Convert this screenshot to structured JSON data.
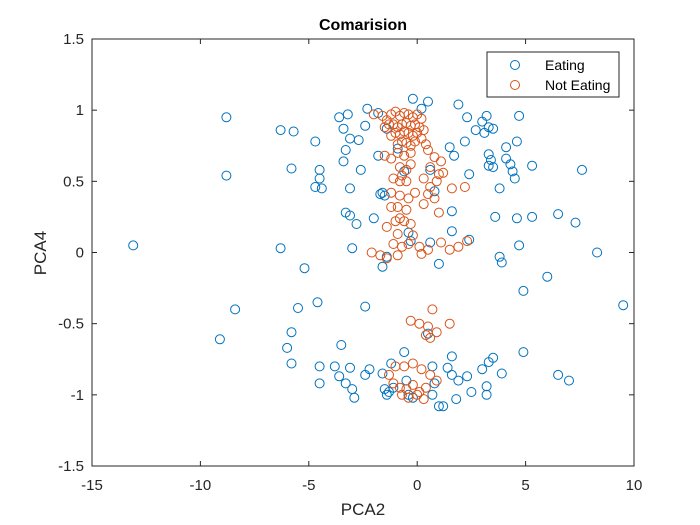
{
  "chart_data": {
    "type": "scatter",
    "title": "Comarision",
    "xlabel": "PCA2",
    "ylabel": "PCA4",
    "xlim": [
      -15,
      10
    ],
    "ylim": [
      -1.5,
      1.5
    ],
    "xticks": [
      -15,
      -10,
      -5,
      0,
      5,
      10
    ],
    "yticks": [
      -1.5,
      -1,
      -0.5,
      0,
      0.5,
      1,
      1.5
    ],
    "xtick_labels": [
      "-15",
      "-10",
      "-5",
      "0",
      "5",
      "10"
    ],
    "ytick_labels": [
      "-1.5",
      "-1",
      "-0.5",
      "0",
      "0.5",
      "1",
      "1.5"
    ],
    "grid": false,
    "legend_position": "top-right",
    "series": [
      {
        "name": "Eating",
        "color": "#0072BD",
        "marker": "circle-open",
        "points": [
          [
            -13.1,
            0.05
          ],
          [
            -8.8,
            0.95
          ],
          [
            -8.8,
            0.54
          ],
          [
            -8.4,
            -0.4
          ],
          [
            -9.1,
            -0.61
          ],
          [
            -6.3,
            0.86
          ],
          [
            -5.7,
            0.85
          ],
          [
            -5.8,
            0.59
          ],
          [
            -6.3,
            0.03
          ],
          [
            -5.2,
            -0.11
          ],
          [
            -5.5,
            -0.39
          ],
          [
            -5.8,
            -0.56
          ],
          [
            -6.0,
            -0.67
          ],
          [
            -5.8,
            -0.78
          ],
          [
            -4.7,
            0.78
          ],
          [
            -4.5,
            0.58
          ],
          [
            -4.5,
            0.52
          ],
          [
            -4.4,
            0.45
          ],
          [
            -4.7,
            0.46
          ],
          [
            -4.6,
            -0.35
          ],
          [
            -4.5,
            -0.8
          ],
          [
            -4.5,
            -0.92
          ],
          [
            -3.6,
            0.95
          ],
          [
            -3.2,
            0.97
          ],
          [
            -3.4,
            0.87
          ],
          [
            -3.1,
            0.8
          ],
          [
            -3.3,
            0.72
          ],
          [
            -3.4,
            0.64
          ],
          [
            -3.1,
            0.45
          ],
          [
            -3.3,
            0.28
          ],
          [
            -3.1,
            0.26
          ],
          [
            -2.8,
            0.2
          ],
          [
            -3.0,
            0.03
          ],
          [
            -3.5,
            -0.65
          ],
          [
            -3.8,
            -0.8
          ],
          [
            -3.6,
            -0.87
          ],
          [
            -3.3,
            -0.92
          ],
          [
            -3.1,
            -0.81
          ],
          [
            -3.0,
            -0.96
          ],
          [
            -2.9,
            -1.02
          ],
          [
            -2.7,
            0.79
          ],
          [
            -2.6,
            0.58
          ],
          [
            -2.4,
            0.89
          ],
          [
            -2.3,
            1.01
          ],
          [
            -2.4,
            -0.38
          ],
          [
            -2.4,
            -0.86
          ],
          [
            -2.2,
            -0.82
          ],
          [
            -2.0,
            0.24
          ],
          [
            -1.8,
            0.98
          ],
          [
            -1.8,
            0.68
          ],
          [
            -1.7,
            0.41
          ],
          [
            -1.6,
            0.42
          ],
          [
            -1.5,
            0.4
          ],
          [
            -1.4,
            0.87
          ],
          [
            -1.6,
            -0.1
          ],
          [
            -1.4,
            -0.03
          ],
          [
            -1.6,
            -0.85
          ],
          [
            -1.5,
            -0.96
          ],
          [
            -1.4,
            -1.0
          ],
          [
            -1.3,
            -0.98
          ],
          [
            -1.2,
            -0.78
          ],
          [
            -1.1,
            -0.95
          ],
          [
            -0.9,
            0.73
          ],
          [
            -0.6,
            0.57
          ],
          [
            -0.4,
            0.14
          ],
          [
            -0.3,
            0.08
          ],
          [
            -0.6,
            -0.7
          ],
          [
            -0.5,
            -0.9
          ],
          [
            -0.4,
            -1.0
          ],
          [
            -0.2,
            -1.02
          ],
          [
            -0.2,
            1.08
          ],
          [
            0.2,
            1.01
          ],
          [
            0.5,
            1.06
          ],
          [
            0.6,
            0.58
          ],
          [
            0.8,
            0.43
          ],
          [
            0.6,
            0.07
          ],
          [
            1.0,
            -0.08
          ],
          [
            0.5,
            -0.57
          ],
          [
            0.7,
            -0.8
          ],
          [
            0.8,
            -0.92
          ],
          [
            1.0,
            -1.08
          ],
          [
            1.2,
            -1.08
          ],
          [
            0.7,
            -1.0
          ],
          [
            1.5,
            0.74
          ],
          [
            1.7,
            0.68
          ],
          [
            1.6,
            0.29
          ],
          [
            1.6,
            0.15
          ],
          [
            1.6,
            -0.73
          ],
          [
            1.4,
            -0.81
          ],
          [
            1.6,
            -0.86
          ],
          [
            1.9,
            -0.9
          ],
          [
            1.8,
            -1.03
          ],
          [
            1.9,
            1.04
          ],
          [
            2.3,
            0.95
          ],
          [
            2.2,
            0.78
          ],
          [
            2.4,
            0.55
          ],
          [
            2.4,
            0.09
          ],
          [
            2.3,
            -0.87
          ],
          [
            2.5,
            -0.98
          ],
          [
            2.7,
            0.86
          ],
          [
            3.0,
            0.92
          ],
          [
            3.2,
            0.96
          ],
          [
            3.3,
            0.88
          ],
          [
            3.1,
            0.84
          ],
          [
            3.3,
            0.69
          ],
          [
            3.4,
            0.65
          ],
          [
            3.3,
            0.61
          ],
          [
            3.0,
            -0.82
          ],
          [
            3.3,
            -0.77
          ],
          [
            3.2,
            -0.94
          ],
          [
            3.2,
            -1.0
          ],
          [
            3.5,
            0.87
          ],
          [
            3.5,
            0.6
          ],
          [
            3.6,
            0.25
          ],
          [
            3.5,
            -0.74
          ],
          [
            3.8,
            0.45
          ],
          [
            3.8,
            -0.03
          ],
          [
            3.9,
            -0.07
          ],
          [
            3.9,
            -0.85
          ],
          [
            4.1,
            0.74
          ],
          [
            4.1,
            0.66
          ],
          [
            4.3,
            0.62
          ],
          [
            4.4,
            0.57
          ],
          [
            4.5,
            0.52
          ],
          [
            4.6,
            0.78
          ],
          [
            4.7,
            0.96
          ],
          [
            4.6,
            0.24
          ],
          [
            4.7,
            0.05
          ],
          [
            4.9,
            -0.27
          ],
          [
            4.9,
            -0.7
          ],
          [
            5.3,
            0.61
          ],
          [
            5.3,
            0.25
          ],
          [
            6.0,
            -0.17
          ],
          [
            6.5,
            0.27
          ],
          [
            6.5,
            -0.86
          ],
          [
            7.0,
            -0.9
          ],
          [
            7.3,
            0.21
          ],
          [
            7.6,
            0.58
          ],
          [
            8.3,
            0.0
          ],
          [
            9.5,
            -0.37
          ]
        ]
      },
      {
        "name": "Not Eating",
        "color": "#D95319",
        "marker": "circle-open",
        "points": [
          [
            -2.0,
            0.97
          ],
          [
            -1.6,
            0.96
          ],
          [
            -1.4,
            0.93
          ],
          [
            -1.2,
            0.97
          ],
          [
            -1.0,
            0.99
          ],
          [
            -0.8,
            0.96
          ],
          [
            -0.6,
            0.98
          ],
          [
            -0.4,
            0.97
          ],
          [
            -0.2,
            0.95
          ],
          [
            0.0,
            0.97
          ],
          [
            0.2,
            0.94
          ],
          [
            -1.5,
            0.88
          ],
          [
            -1.3,
            0.9
          ],
          [
            -1.1,
            0.9
          ],
          [
            -0.9,
            0.88
          ],
          [
            -0.7,
            0.9
          ],
          [
            -0.5,
            0.91
          ],
          [
            -0.3,
            0.89
          ],
          [
            -0.1,
            0.9
          ],
          [
            0.1,
            0.88
          ],
          [
            0.3,
            0.86
          ],
          [
            -1.2,
            0.82
          ],
          [
            -1.0,
            0.84
          ],
          [
            -0.8,
            0.83
          ],
          [
            -0.6,
            0.85
          ],
          [
            -0.4,
            0.84
          ],
          [
            -0.2,
            0.82
          ],
          [
            0.0,
            0.84
          ],
          [
            0.2,
            0.8
          ],
          [
            -0.9,
            0.76
          ],
          [
            -0.7,
            0.78
          ],
          [
            -0.5,
            0.77
          ],
          [
            -0.3,
            0.75
          ],
          [
            -0.1,
            0.78
          ],
          [
            0.4,
            0.76
          ],
          [
            -1.5,
            0.68
          ],
          [
            -1.2,
            0.66
          ],
          [
            -0.9,
            0.7
          ],
          [
            -0.6,
            0.68
          ],
          [
            -0.3,
            0.7
          ],
          [
            0.5,
            0.72
          ],
          [
            0.8,
            0.67
          ],
          [
            1.1,
            0.64
          ],
          [
            -0.8,
            0.6
          ],
          [
            -0.5,
            0.58
          ],
          [
            -0.3,
            0.62
          ],
          [
            0.6,
            0.6
          ],
          [
            1.2,
            0.56
          ],
          [
            -1.1,
            0.52
          ],
          [
            -0.8,
            0.5
          ],
          [
            -0.5,
            0.5
          ],
          [
            -0.7,
            0.54
          ],
          [
            0.3,
            0.52
          ],
          [
            0.6,
            0.46
          ],
          [
            0.9,
            0.5
          ],
          [
            1.0,
            0.55
          ],
          [
            1.6,
            0.45
          ],
          [
            2.2,
            0.46
          ],
          [
            -1.2,
            0.42
          ],
          [
            -0.8,
            0.4
          ],
          [
            -0.4,
            0.38
          ],
          [
            -0.1,
            0.42
          ],
          [
            0.5,
            0.41
          ],
          [
            0.8,
            0.38
          ],
          [
            -1.2,
            0.32
          ],
          [
            -0.9,
            0.32
          ],
          [
            -0.5,
            0.3
          ],
          [
            0.3,
            0.34
          ],
          [
            1.0,
            0.28
          ],
          [
            -0.8,
            0.24
          ],
          [
            -0.6,
            0.22
          ],
          [
            -1.4,
            0.18
          ],
          [
            -1.0,
            0.22
          ],
          [
            -0.3,
            0.2
          ],
          [
            -0.9,
            0.13
          ],
          [
            -0.2,
            0.12
          ],
          [
            -1.1,
            0.06
          ],
          [
            -0.7,
            0.04
          ],
          [
            -0.4,
            0.06
          ],
          [
            0.1,
            0.04
          ],
          [
            0.5,
            0.02
          ],
          [
            1.1,
            0.07
          ],
          [
            1.5,
            0.02
          ],
          [
            1.9,
            0.04
          ],
          [
            2.3,
            0.08
          ],
          [
            -2.1,
            0.0
          ],
          [
            -1.7,
            -0.02
          ],
          [
            -1.4,
            -0.04
          ],
          [
            -0.9,
            -0.02
          ],
          [
            0.2,
            -0.01
          ],
          [
            0.7,
            -0.4
          ],
          [
            -0.3,
            -0.48
          ],
          [
            0.1,
            -0.5
          ],
          [
            0.5,
            -0.52
          ],
          [
            0.9,
            -0.56
          ],
          [
            1.5,
            -0.5
          ],
          [
            0.4,
            -0.58
          ],
          [
            0.6,
            -0.6
          ],
          [
            -1.3,
            -0.86
          ],
          [
            -1.0,
            -0.8
          ],
          [
            -0.6,
            -0.8
          ],
          [
            -0.2,
            -0.78
          ],
          [
            0.2,
            -0.82
          ],
          [
            0.6,
            -0.86
          ],
          [
            0.9,
            -0.9
          ],
          [
            -1.1,
            -0.92
          ],
          [
            -0.8,
            -0.95
          ],
          [
            -0.5,
            -0.96
          ],
          [
            -0.2,
            -0.93
          ],
          [
            0.1,
            -0.98
          ],
          [
            0.4,
            -0.95
          ],
          [
            -0.7,
            -1.0
          ],
          [
            -0.4,
            -1.02
          ],
          [
            0.0,
            -1.0
          ],
          [
            0.3,
            -1.03
          ]
        ]
      }
    ]
  }
}
